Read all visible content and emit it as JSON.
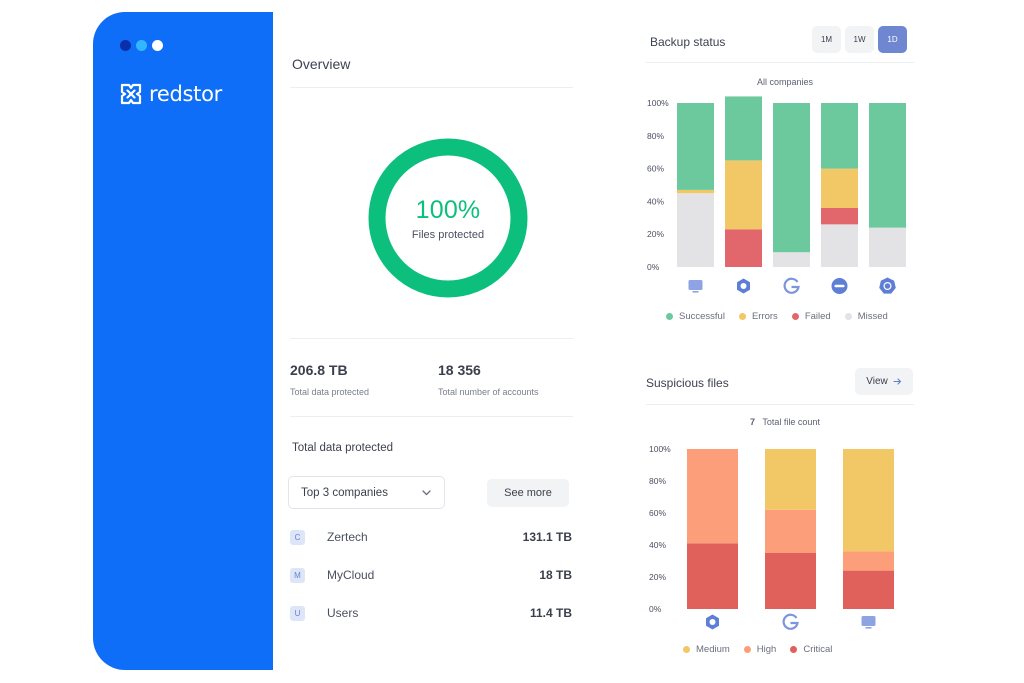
{
  "app": {
    "brand": "redstor",
    "colors": {
      "sidebar": "#0f6ef7",
      "success": "#6cc99d",
      "errors": "#f2c765",
      "failed": "#e2676c",
      "missed": "#e3e3e6",
      "medium": "#f2c765",
      "high": "#fc9e7a",
      "critical": "#e0605b",
      "accent": "#6f86d1",
      "donut": "#0cbf7c"
    }
  },
  "overview": {
    "title": "Overview",
    "donut": {
      "percent": 100,
      "value_label": "100%",
      "sub_label": "Files protected"
    },
    "stats": [
      {
        "value": "206.8 TB",
        "label": "Total data protected"
      },
      {
        "value": "18 356",
        "label": "Total number of accounts"
      }
    ],
    "total_title": "Total data protected",
    "dropdown": {
      "selected": "Top 3 companies"
    },
    "see_more_label": "See more",
    "companies": [
      {
        "badge": "C",
        "name": "Zertech",
        "value": "131.1 TB"
      },
      {
        "badge": "M",
        "name": "MyCloud",
        "value": "18 TB"
      },
      {
        "badge": "U",
        "name": "Users",
        "value": "11.4 TB"
      }
    ]
  },
  "backup": {
    "title": "Backup status",
    "periods": [
      {
        "label": "1M",
        "active": false
      },
      {
        "label": "1W",
        "active": false
      },
      {
        "label": "1D",
        "active": true
      }
    ],
    "caption": "All companies"
  },
  "suspicious": {
    "title": "Suspicious files",
    "view_label": "View",
    "count": "7",
    "count_label": "Total file count"
  },
  "chart_data": [
    {
      "type": "bar",
      "stacked": true,
      "title": "All companies",
      "categories": [
        "monitor-icon",
        "hexagon-icon",
        "google-icon",
        "cloud-icon",
        "kubernetes-icon"
      ],
      "series": [
        {
          "name": "Successful",
          "color": "#6cc99d",
          "values": [
            53,
            39,
            91,
            40,
            76
          ]
        },
        {
          "name": "Errors",
          "color": "#f2c765",
          "values": [
            2,
            42,
            0,
            24,
            0
          ]
        },
        {
          "name": "Failed",
          "color": "#e2676c",
          "values": [
            0,
            23,
            0,
            10,
            0
          ]
        },
        {
          "name": "Missed",
          "color": "#e3e3e6",
          "values": [
            45,
            0,
            9,
            26,
            24
          ]
        }
      ],
      "ylim": [
        0,
        100
      ],
      "yticks": [
        "0%",
        "20%",
        "40%",
        "60%",
        "80%",
        "100%"
      ],
      "legend": "bottom"
    },
    {
      "type": "bar",
      "stacked": true,
      "title": "Total file count",
      "categories": [
        "hexagon-icon",
        "google-icon",
        "monitor-icon"
      ],
      "series": [
        {
          "name": "Medium",
          "color": "#f2c765",
          "values": [
            0,
            38,
            64
          ]
        },
        {
          "name": "High",
          "color": "#fc9e7a",
          "values": [
            59,
            27,
            12
          ]
        },
        {
          "name": "Critical",
          "color": "#e0605b",
          "values": [
            41,
            35,
            24
          ]
        }
      ],
      "ylim": [
        0,
        100
      ],
      "yticks": [
        "0%",
        "20%",
        "40%",
        "60%",
        "80%",
        "100%"
      ],
      "legend": "bottom"
    }
  ]
}
